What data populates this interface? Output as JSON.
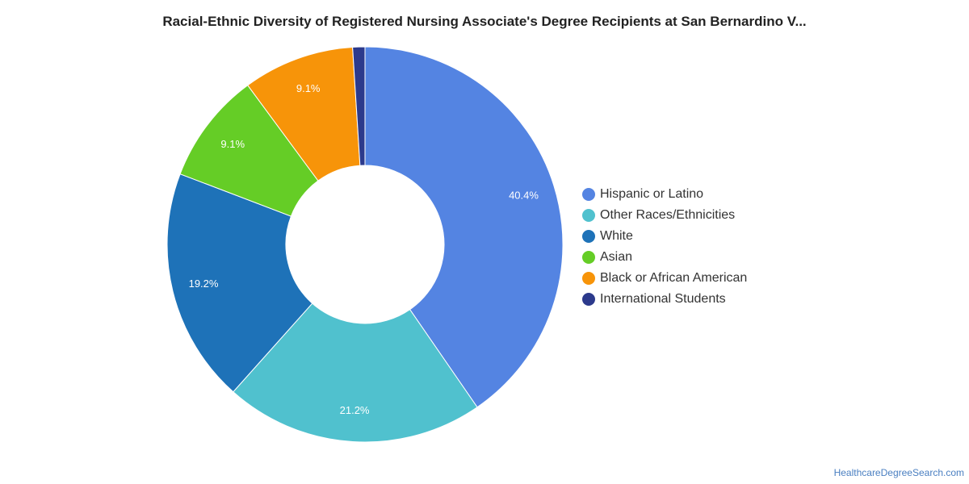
{
  "chart_data": {
    "type": "pie",
    "title": "Racial-Ethnic Diversity of Registered Nursing Associate's Degree Recipients at San Bernardino V...",
    "donut": true,
    "legend_position": "right",
    "slices": [
      {
        "label": "Hispanic or Latino",
        "value": 40.4,
        "display": "40.4%",
        "color": "#5484e2"
      },
      {
        "label": "Other Races/Ethnicities",
        "value": 21.2,
        "display": "21.2%",
        "color": "#50c1ce"
      },
      {
        "label": "White",
        "value": 19.2,
        "display": "19.2%",
        "color": "#1e72b8"
      },
      {
        "label": "Asian",
        "value": 9.1,
        "display": "9.1%",
        "color": "#65cd26"
      },
      {
        "label": "Black or African American",
        "value": 9.1,
        "display": "9.1%",
        "color": "#f79409"
      },
      {
        "label": "International Students",
        "value": 1.0,
        "display": "",
        "color": "#2c3a8c"
      }
    ]
  },
  "footer": {
    "source": "HealthcareDegreeSearch.com"
  }
}
